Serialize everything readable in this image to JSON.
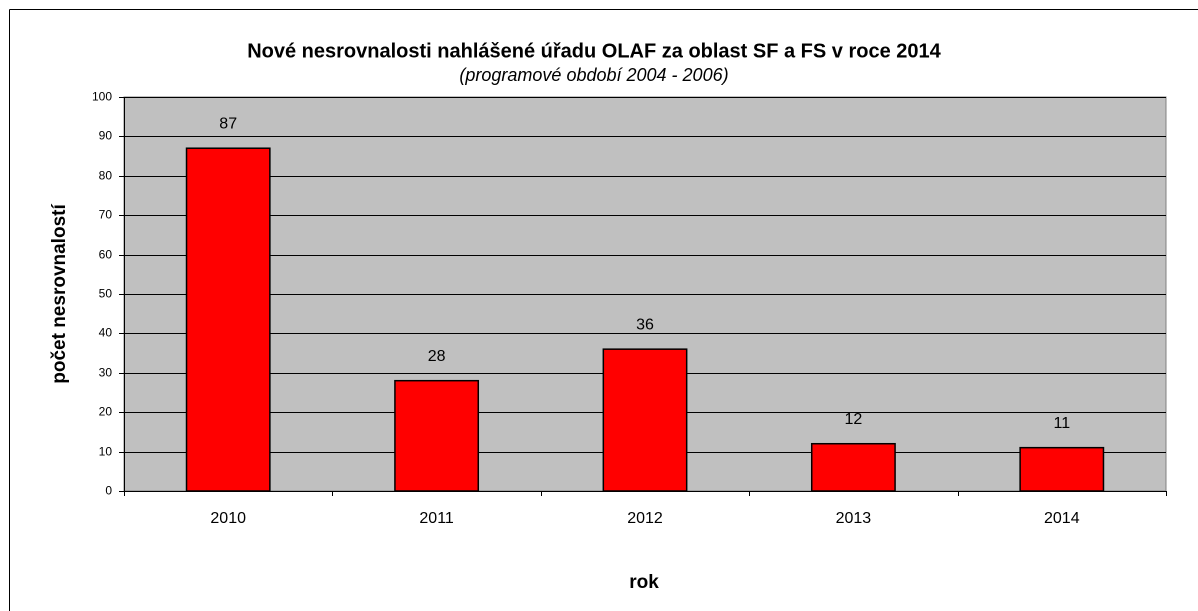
{
  "chart_data": {
    "type": "bar",
    "title": "Nové nesrovnalosti nahlášené úřadu OLAF za oblast SF a FS v roce 2014",
    "subtitle": "(programové období 2004 - 2006)",
    "x_label": "rok",
    "y_label": "počet nesrovnalostí",
    "categories": [
      "2010",
      "2011",
      "2012",
      "2013",
      "2014"
    ],
    "values": [
      87,
      28,
      36,
      12,
      11
    ],
    "color": "#ff0000",
    "ylim": [
      0,
      100
    ],
    "yticks": [
      0,
      10,
      20,
      30,
      40,
      50,
      60,
      70,
      80,
      90,
      100
    ],
    "grid": true
  }
}
